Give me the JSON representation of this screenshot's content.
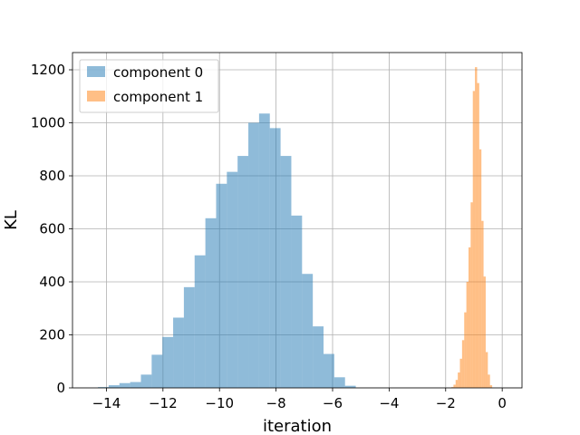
{
  "chart_data": {
    "type": "histogram",
    "xlabel": "iteration",
    "ylabel": "KL",
    "xlim": [
      -15.2,
      0.7
    ],
    "ylim": [
      0,
      1265
    ],
    "xticks": [
      -14,
      -12,
      -10,
      -8,
      -6,
      -4,
      -2,
      0
    ],
    "yticks": [
      0,
      200,
      400,
      600,
      800,
      1000,
      1200
    ],
    "grid": true,
    "legend_position": "top-left",
    "series": [
      {
        "name": "component 0",
        "color": "#1f77b4",
        "opacity": 0.5,
        "bin_width": 0.38,
        "bins": [
          {
            "x0": -14.3,
            "count": 3
          },
          {
            "x0": -13.92,
            "count": 10
          },
          {
            "x0": -13.54,
            "count": 18
          },
          {
            "x0": -13.16,
            "count": 22
          },
          {
            "x0": -12.78,
            "count": 50
          },
          {
            "x0": -12.4,
            "count": 125
          },
          {
            "x0": -12.02,
            "count": 192
          },
          {
            "x0": -11.64,
            "count": 265
          },
          {
            "x0": -11.26,
            "count": 380
          },
          {
            "x0": -10.88,
            "count": 500
          },
          {
            "x0": -10.5,
            "count": 640
          },
          {
            "x0": -10.12,
            "count": 770
          },
          {
            "x0": -9.74,
            "count": 815
          },
          {
            "x0": -9.36,
            "count": 875
          },
          {
            "x0": -8.98,
            "count": 1000
          },
          {
            "x0": -8.6,
            "count": 1035
          },
          {
            "x0": -8.22,
            "count": 980
          },
          {
            "x0": -7.84,
            "count": 875
          },
          {
            "x0": -7.46,
            "count": 650
          },
          {
            "x0": -7.08,
            "count": 430
          },
          {
            "x0": -6.7,
            "count": 232
          },
          {
            "x0": -6.32,
            "count": 128
          },
          {
            "x0": -5.94,
            "count": 40
          },
          {
            "x0": -5.56,
            "count": 8
          }
        ]
      },
      {
        "name": "component 1",
        "color": "#ff7f0e",
        "opacity": 0.5,
        "bin_width": 0.076,
        "bins": [
          {
            "x0": -1.8,
            "count": 3
          },
          {
            "x0": -1.724,
            "count": 12
          },
          {
            "x0": -1.648,
            "count": 30
          },
          {
            "x0": -1.572,
            "count": 58
          },
          {
            "x0": -1.496,
            "count": 110
          },
          {
            "x0": -1.42,
            "count": 180
          },
          {
            "x0": -1.344,
            "count": 285
          },
          {
            "x0": -1.268,
            "count": 400
          },
          {
            "x0": -1.192,
            "count": 530
          },
          {
            "x0": -1.116,
            "count": 700
          },
          {
            "x0": -1.04,
            "count": 1120
          },
          {
            "x0": -0.964,
            "count": 1210
          },
          {
            "x0": -0.888,
            "count": 1150
          },
          {
            "x0": -0.812,
            "count": 900
          },
          {
            "x0": -0.736,
            "count": 630
          },
          {
            "x0": -0.66,
            "count": 420
          },
          {
            "x0": -0.584,
            "count": 135
          },
          {
            "x0": -0.508,
            "count": 50
          },
          {
            "x0": -0.432,
            "count": 10
          }
        ]
      }
    ]
  }
}
